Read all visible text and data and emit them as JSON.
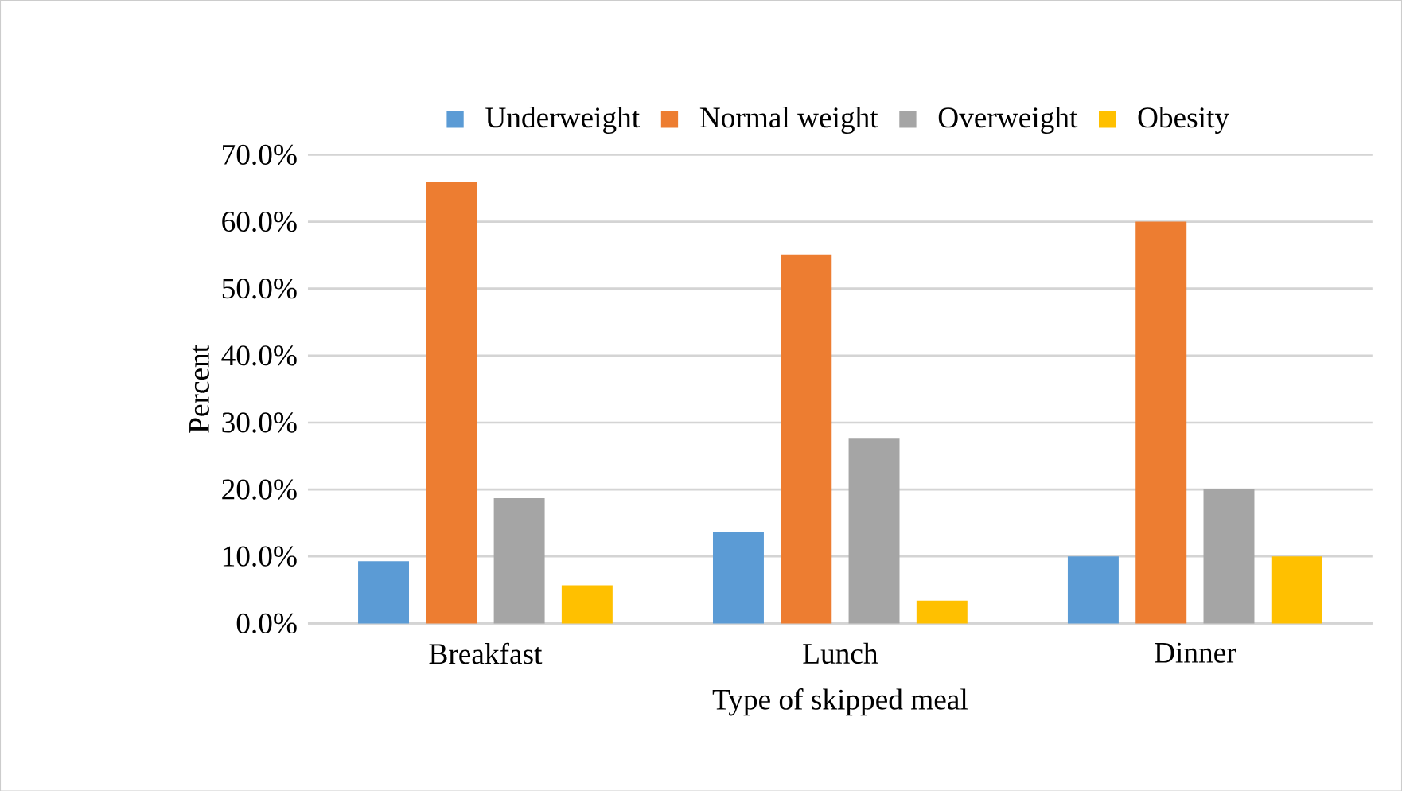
{
  "chart_data": {
    "type": "bar",
    "xlabel": "Type of skipped meal",
    "ylabel": "Percent",
    "categories": [
      "Breakfast",
      "Lunch",
      "Dinner"
    ],
    "series": [
      {
        "name": "Underweight",
        "color": "#5b9bd5",
        "values": [
          9.3,
          13.7,
          10.0
        ]
      },
      {
        "name": "Normal weight",
        "color": "#ed7d31",
        "values": [
          65.9,
          55.1,
          60.0
        ]
      },
      {
        "name": "Overweight",
        "color": "#a5a5a5",
        "values": [
          18.7,
          27.6,
          20.0
        ]
      },
      {
        "name": "Obesity",
        "color": "#ffc000",
        "values": [
          5.7,
          3.4,
          10.0
        ]
      }
    ],
    "ylim": [
      0,
      70
    ],
    "yticks": [
      {
        "value": 0,
        "label": "0.0%"
      },
      {
        "value": 10,
        "label": "10.0%"
      },
      {
        "value": 20,
        "label": "20.0%"
      },
      {
        "value": 30,
        "label": "30.0%"
      },
      {
        "value": 40,
        "label": "40.0%"
      },
      {
        "value": 50,
        "label": "50.0%"
      },
      {
        "value": 60,
        "label": "60.0%"
      },
      {
        "value": 70,
        "label": "70.0%"
      }
    ],
    "grid": "y",
    "legend": "top"
  }
}
